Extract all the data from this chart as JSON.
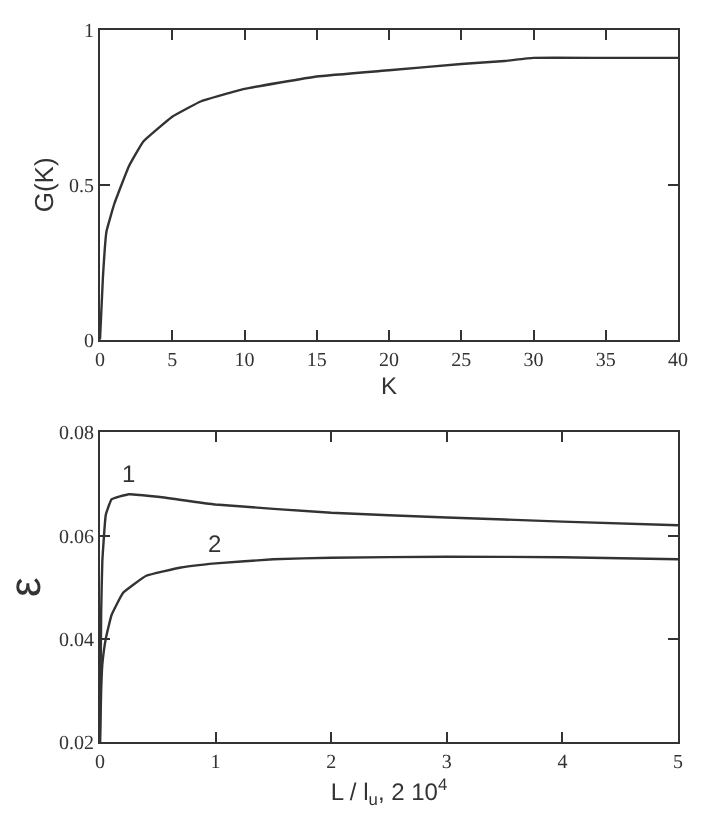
{
  "chart_data": [
    {
      "type": "line",
      "xlabel": "K",
      "ylabel": "G(K)",
      "xlim": [
        0,
        40
      ],
      "ylim": [
        0,
        1
      ],
      "xticks": [
        0,
        5,
        10,
        15,
        20,
        25,
        30,
        35,
        40
      ],
      "yticks": [
        0,
        0.5,
        1
      ],
      "grid": false,
      "legend": false,
      "marker": "none",
      "line_style": "solid",
      "series": [
        {
          "color": "#333333",
          "x": [
            0,
            0.2,
            0.45,
            1,
            2,
            3,
            5,
            7,
            10,
            15,
            20,
            25,
            28,
            30,
            35,
            40
          ],
          "values": [
            0,
            0.2,
            0.35,
            0.44,
            0.56,
            0.64,
            0.72,
            0.77,
            0.81,
            0.85,
            0.87,
            0.89,
            0.9,
            0.91,
            0.91,
            0.91
          ]
        }
      ]
    },
    {
      "type": "line",
      "xlabel": "L / l$_{u}$, 2 10$^{4}$",
      "ylabel": "ε",
      "xlim": [
        0,
        5
      ],
      "ylim": [
        0.02,
        0.08
      ],
      "xticks": [
        0,
        1,
        2,
        3,
        4,
        5
      ],
      "yticks": [
        0.02,
        0.04,
        0.06,
        0.08
      ],
      "grid": false,
      "legend": false,
      "marker": "none",
      "line_style": "solid",
      "series": [
        {
          "name": "1",
          "color": "#333333",
          "x": [
            0,
            0.01,
            0.02,
            0.05,
            0.1,
            0.25,
            0.5,
            1,
            2,
            3,
            4,
            5
          ],
          "values": [
            0.02,
            0.045,
            0.055,
            0.064,
            0.067,
            0.068,
            0.0675,
            0.066,
            0.0644,
            0.0635,
            0.0627,
            0.062
          ]
        },
        {
          "name": "2",
          "color": "#333333",
          "x": [
            0,
            0.01,
            0.02,
            0.05,
            0.1,
            0.2,
            0.4,
            0.7,
            1,
            1.5,
            2,
            3,
            4,
            5
          ],
          "values": [
            0.02,
            0.03,
            0.035,
            0.04,
            0.0446,
            0.0489,
            0.0522,
            0.0538,
            0.0546,
            0.0554,
            0.0557,
            0.0559,
            0.0558,
            0.0554
          ]
        }
      ]
    }
  ]
}
